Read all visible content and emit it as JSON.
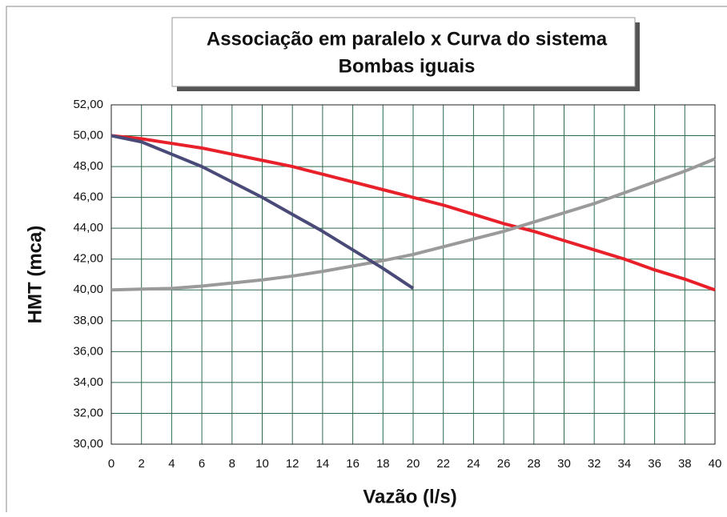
{
  "chart_data": {
    "type": "line",
    "title": "Associação em paralelo x Curva do sistema",
    "subtitle": "Bombas iguais",
    "x_label": "Vazão (l/s)",
    "y_label": "HMT (mca)",
    "x": [
      0,
      2,
      4,
      6,
      8,
      10,
      12,
      14,
      16,
      18,
      20,
      22,
      24,
      26,
      28,
      30,
      32,
      34,
      36,
      38,
      40
    ],
    "series": [
      {
        "color": "#e8202a",
        "values": [
          50,
          49.8,
          49.5,
          49.2,
          48.8,
          48.4,
          48,
          47.5,
          47,
          46.5,
          46,
          45.5,
          44.9,
          44.3,
          43.8,
          43.2,
          42.6,
          42,
          41.3,
          40.7,
          40
        ]
      },
      {
        "color": "#9a9a9a",
        "values": [
          40,
          40.05,
          40.1,
          40.25,
          40.45,
          40.65,
          40.9,
          41.2,
          41.55,
          41.9,
          42.3,
          42.8,
          43.3,
          43.8,
          44.4,
          45,
          45.6,
          46.3,
          47,
          47.7,
          48.5
        ]
      },
      {
        "color": "#4a4a78",
        "values": [
          50,
          49.6,
          48.8,
          48,
          47,
          46,
          44.9,
          43.8,
          42.6,
          41.4,
          40.1,
          null,
          null,
          null,
          null,
          null,
          null,
          null,
          null,
          null,
          null
        ]
      }
    ],
    "xlim": [
      0,
      40
    ],
    "xticks": [
      0,
      2,
      4,
      6,
      8,
      10,
      12,
      14,
      16,
      18,
      20,
      22,
      24,
      26,
      28,
      30,
      32,
      34,
      36,
      38,
      40
    ],
    "ylim": [
      30,
      52
    ],
    "yticks": [
      {
        "value": 30,
        "label": "30,00"
      },
      {
        "value": 32,
        "label": "32,00"
      },
      {
        "value": 34,
        "label": "34,00"
      },
      {
        "value": 36,
        "label": "36,00"
      },
      {
        "value": 38,
        "label": "38,00"
      },
      {
        "value": 40,
        "label": "40,00"
      },
      {
        "value": 42,
        "label": "42,00"
      },
      {
        "value": 44,
        "label": "44,00"
      },
      {
        "value": 46,
        "label": "46,00"
      },
      {
        "value": 48,
        "label": "48,00"
      },
      {
        "value": 50,
        "label": "50,00"
      },
      {
        "value": 52,
        "label": "52,00"
      }
    ],
    "grid": true
  }
}
